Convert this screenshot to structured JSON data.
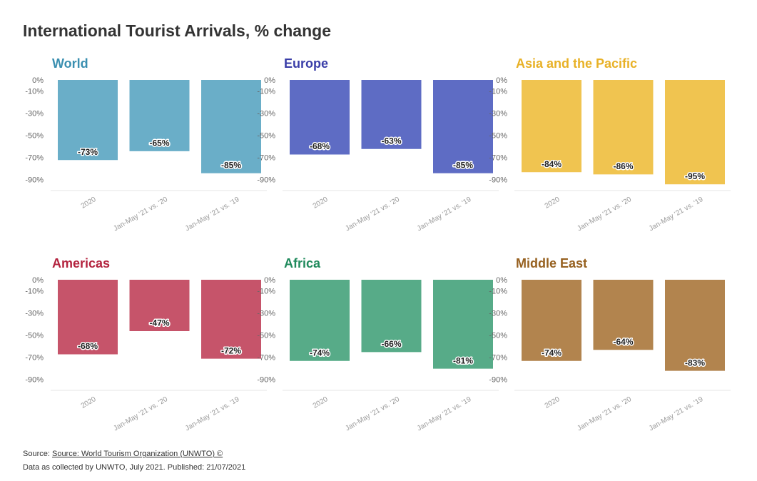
{
  "title": "International Tourist Arrivals, % change",
  "footer": {
    "source_prefix": "Source:",
    "source_link": "Source: World Tourism Organization (UNWTO) ©",
    "note": "Data as collected by UNWTO, July 2021. Published: 21/07/2021"
  },
  "chart_data": [
    {
      "type": "bar",
      "title": "World",
      "color": "#6aaec8",
      "title_color": "#3a8fb0",
      "categories": [
        "2020",
        "Jan-May '21 vs. '20",
        "Jan-May '21 vs. '19"
      ],
      "values": [
        -73,
        -65,
        -85
      ],
      "labels": [
        "-73%",
        "-65%",
        "-85%"
      ],
      "yticks": [
        "0%",
        "-10%",
        "-30%",
        "-50%",
        "-70%",
        "-90%"
      ],
      "ylim": [
        -95,
        0
      ]
    },
    {
      "type": "bar",
      "title": "Europe",
      "color": "#5e6cc4",
      "title_color": "#3a3ea8",
      "categories": [
        "2020",
        "Jan-May '21 vs. '20",
        "Jan-May '21 vs. '19"
      ],
      "values": [
        -68,
        -63,
        -85
      ],
      "labels": [
        "-68%",
        "-63%",
        "-85%"
      ],
      "yticks": [
        "0%",
        "-10%",
        "-30%",
        "-50%",
        "-70%",
        "-90%"
      ],
      "ylim": [
        -95,
        0
      ]
    },
    {
      "type": "bar",
      "title": "Asia and the Pacific",
      "color": "#f0c450",
      "title_color": "#e8b126",
      "categories": [
        "2020",
        "Jan-May '21 vs. '20",
        "Jan-May '21 vs. '19"
      ],
      "values": [
        -84,
        -86,
        -95
      ],
      "labels": [
        "-84%",
        "-86%",
        "-95%"
      ],
      "yticks": [
        "0%",
        "-10%",
        "-30%",
        "-50%",
        "-70%",
        "-90%"
      ],
      "ylim": [
        -95,
        0
      ]
    },
    {
      "type": "bar",
      "title": "Americas",
      "color": "#c6546a",
      "title_color": "#b3233e",
      "categories": [
        "2020",
        "Jan-May '21 vs. '20",
        "Jan-May '21 vs. '19"
      ],
      "values": [
        -68,
        -47,
        -72
      ],
      "labels": [
        "-68%",
        "-47%",
        "-72%"
      ],
      "yticks": [
        "0%",
        "-10%",
        "-30%",
        "-50%",
        "-70%",
        "-90%"
      ],
      "ylim": [
        -95,
        0
      ]
    },
    {
      "type": "bar",
      "title": "Africa",
      "color": "#57ab88",
      "title_color": "#1f8a5c",
      "categories": [
        "2020",
        "Jan-May '21 vs. '20",
        "Jan-May '21 vs. '19"
      ],
      "values": [
        -74,
        -66,
        -81
      ],
      "labels": [
        "-74%",
        "-66%",
        "-81%"
      ],
      "yticks": [
        "0%",
        "-10%",
        "-30%",
        "-50%",
        "-70%",
        "-90%"
      ],
      "ylim": [
        -95,
        0
      ]
    },
    {
      "type": "bar",
      "title": "Middle East",
      "color": "#b2844e",
      "title_color": "#96601f",
      "categories": [
        "2020",
        "Jan-May '21 vs. '20",
        "Jan-May '21 vs. '19"
      ],
      "values": [
        -74,
        -64,
        -83
      ],
      "labels": [
        "-74%",
        "-64%",
        "-83%"
      ],
      "yticks": [
        "0%",
        "-10%",
        "-30%",
        "-50%",
        "-70%",
        "-90%"
      ],
      "ylim": [
        -95,
        0
      ]
    }
  ]
}
